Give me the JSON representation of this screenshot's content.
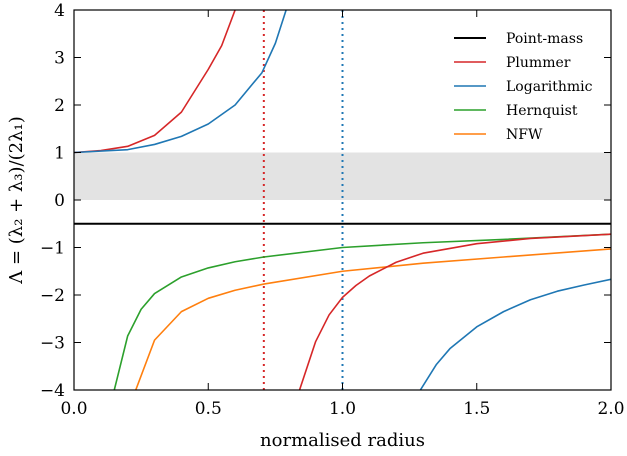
{
  "chart_data": {
    "type": "line",
    "xlabel": "normalised radius",
    "ylabel": "Λ = (λ₂ + λ₃)/(2λ₁)",
    "xlim": [
      0.0,
      2.0
    ],
    "ylim": [
      -4,
      4
    ],
    "xticks": [
      0.0,
      0.5,
      1.0,
      1.5,
      2.0
    ],
    "xtick_labels": [
      "0.0",
      "0.5",
      "1.0",
      "1.5",
      "2.0"
    ],
    "yticks": [
      4,
      3,
      2,
      1,
      0,
      -1,
      -2,
      -3,
      -4
    ],
    "ytick_labels": [
      "4",
      "3",
      "2",
      "1",
      "0",
      "−1",
      "−2",
      "−3",
      "−4"
    ],
    "grid": false,
    "legend_position": "top-right",
    "shaded_band": {
      "y_from": 0,
      "y_to": 1,
      "color": "#e3e3e3"
    },
    "vertical_lines": [
      {
        "x": 0.707,
        "color": "#d62728",
        "style": "dotted"
      },
      {
        "x": 1.0,
        "color": "#1f77b4",
        "style": "dotted"
      }
    ],
    "series": [
      {
        "name": "Point-mass",
        "color": "#000000",
        "x": [
          0.0,
          2.0
        ],
        "y": [
          -0.5,
          -0.5
        ]
      },
      {
        "name": "Plummer",
        "color": "#d62728",
        "x": [
          0.0,
          0.1,
          0.2,
          0.3,
          0.4,
          0.5,
          0.55,
          0.6
        ],
        "y": [
          1.0,
          1.04,
          1.13,
          1.36,
          1.85,
          2.75,
          3.25,
          4.0
        ]
      },
      {
        "name": "Logarithmic",
        "color": "#1f77b4",
        "x": [
          0.0,
          0.2,
          0.3,
          0.4,
          0.5,
          0.6,
          0.7,
          0.75,
          0.79
        ],
        "y": [
          1.0,
          1.06,
          1.17,
          1.34,
          1.6,
          2.0,
          2.68,
          3.3,
          4.0
        ]
      },
      {
        "name": "Hernquist",
        "color": "#2ca02c",
        "x": [
          0.15,
          0.2,
          0.25,
          0.3,
          0.4,
          0.5,
          0.6,
          0.707,
          1.0,
          1.3,
          1.6,
          2.0
        ],
        "y": [
          -4.0,
          -2.86,
          -2.3,
          -1.97,
          -1.62,
          -1.43,
          -1.3,
          -1.2,
          -1.0,
          -0.9,
          -0.83,
          -0.72
        ]
      },
      {
        "name": "NFW",
        "color": "#ff7f0e",
        "x": [
          0.23,
          0.3,
          0.4,
          0.5,
          0.6,
          0.707,
          1.0,
          1.3,
          1.6,
          2.0
        ],
        "y": [
          -4.0,
          -2.95,
          -2.35,
          -2.07,
          -1.9,
          -1.77,
          -1.5,
          -1.33,
          -1.2,
          -1.03
        ]
      },
      {
        "name": "Plummer (branch)",
        "color": "#d62728",
        "legend": false,
        "x": [
          0.84,
          0.9,
          0.95,
          1.0,
          1.05,
          1.1,
          1.2,
          1.3,
          1.5,
          1.7,
          2.0
        ],
        "y": [
          -4.0,
          -2.98,
          -2.42,
          -2.05,
          -1.8,
          -1.6,
          -1.31,
          -1.12,
          -0.92,
          -0.81,
          -0.72
        ]
      },
      {
        "name": "Logarithmic (branch)",
        "color": "#1f77b4",
        "legend": false,
        "x": [
          1.29,
          1.35,
          1.4,
          1.5,
          1.6,
          1.7,
          1.8,
          1.9,
          2.0
        ],
        "y": [
          -4.0,
          -3.46,
          -3.13,
          -2.67,
          -2.35,
          -2.1,
          -1.92,
          -1.79,
          -1.67
        ]
      }
    ]
  }
}
